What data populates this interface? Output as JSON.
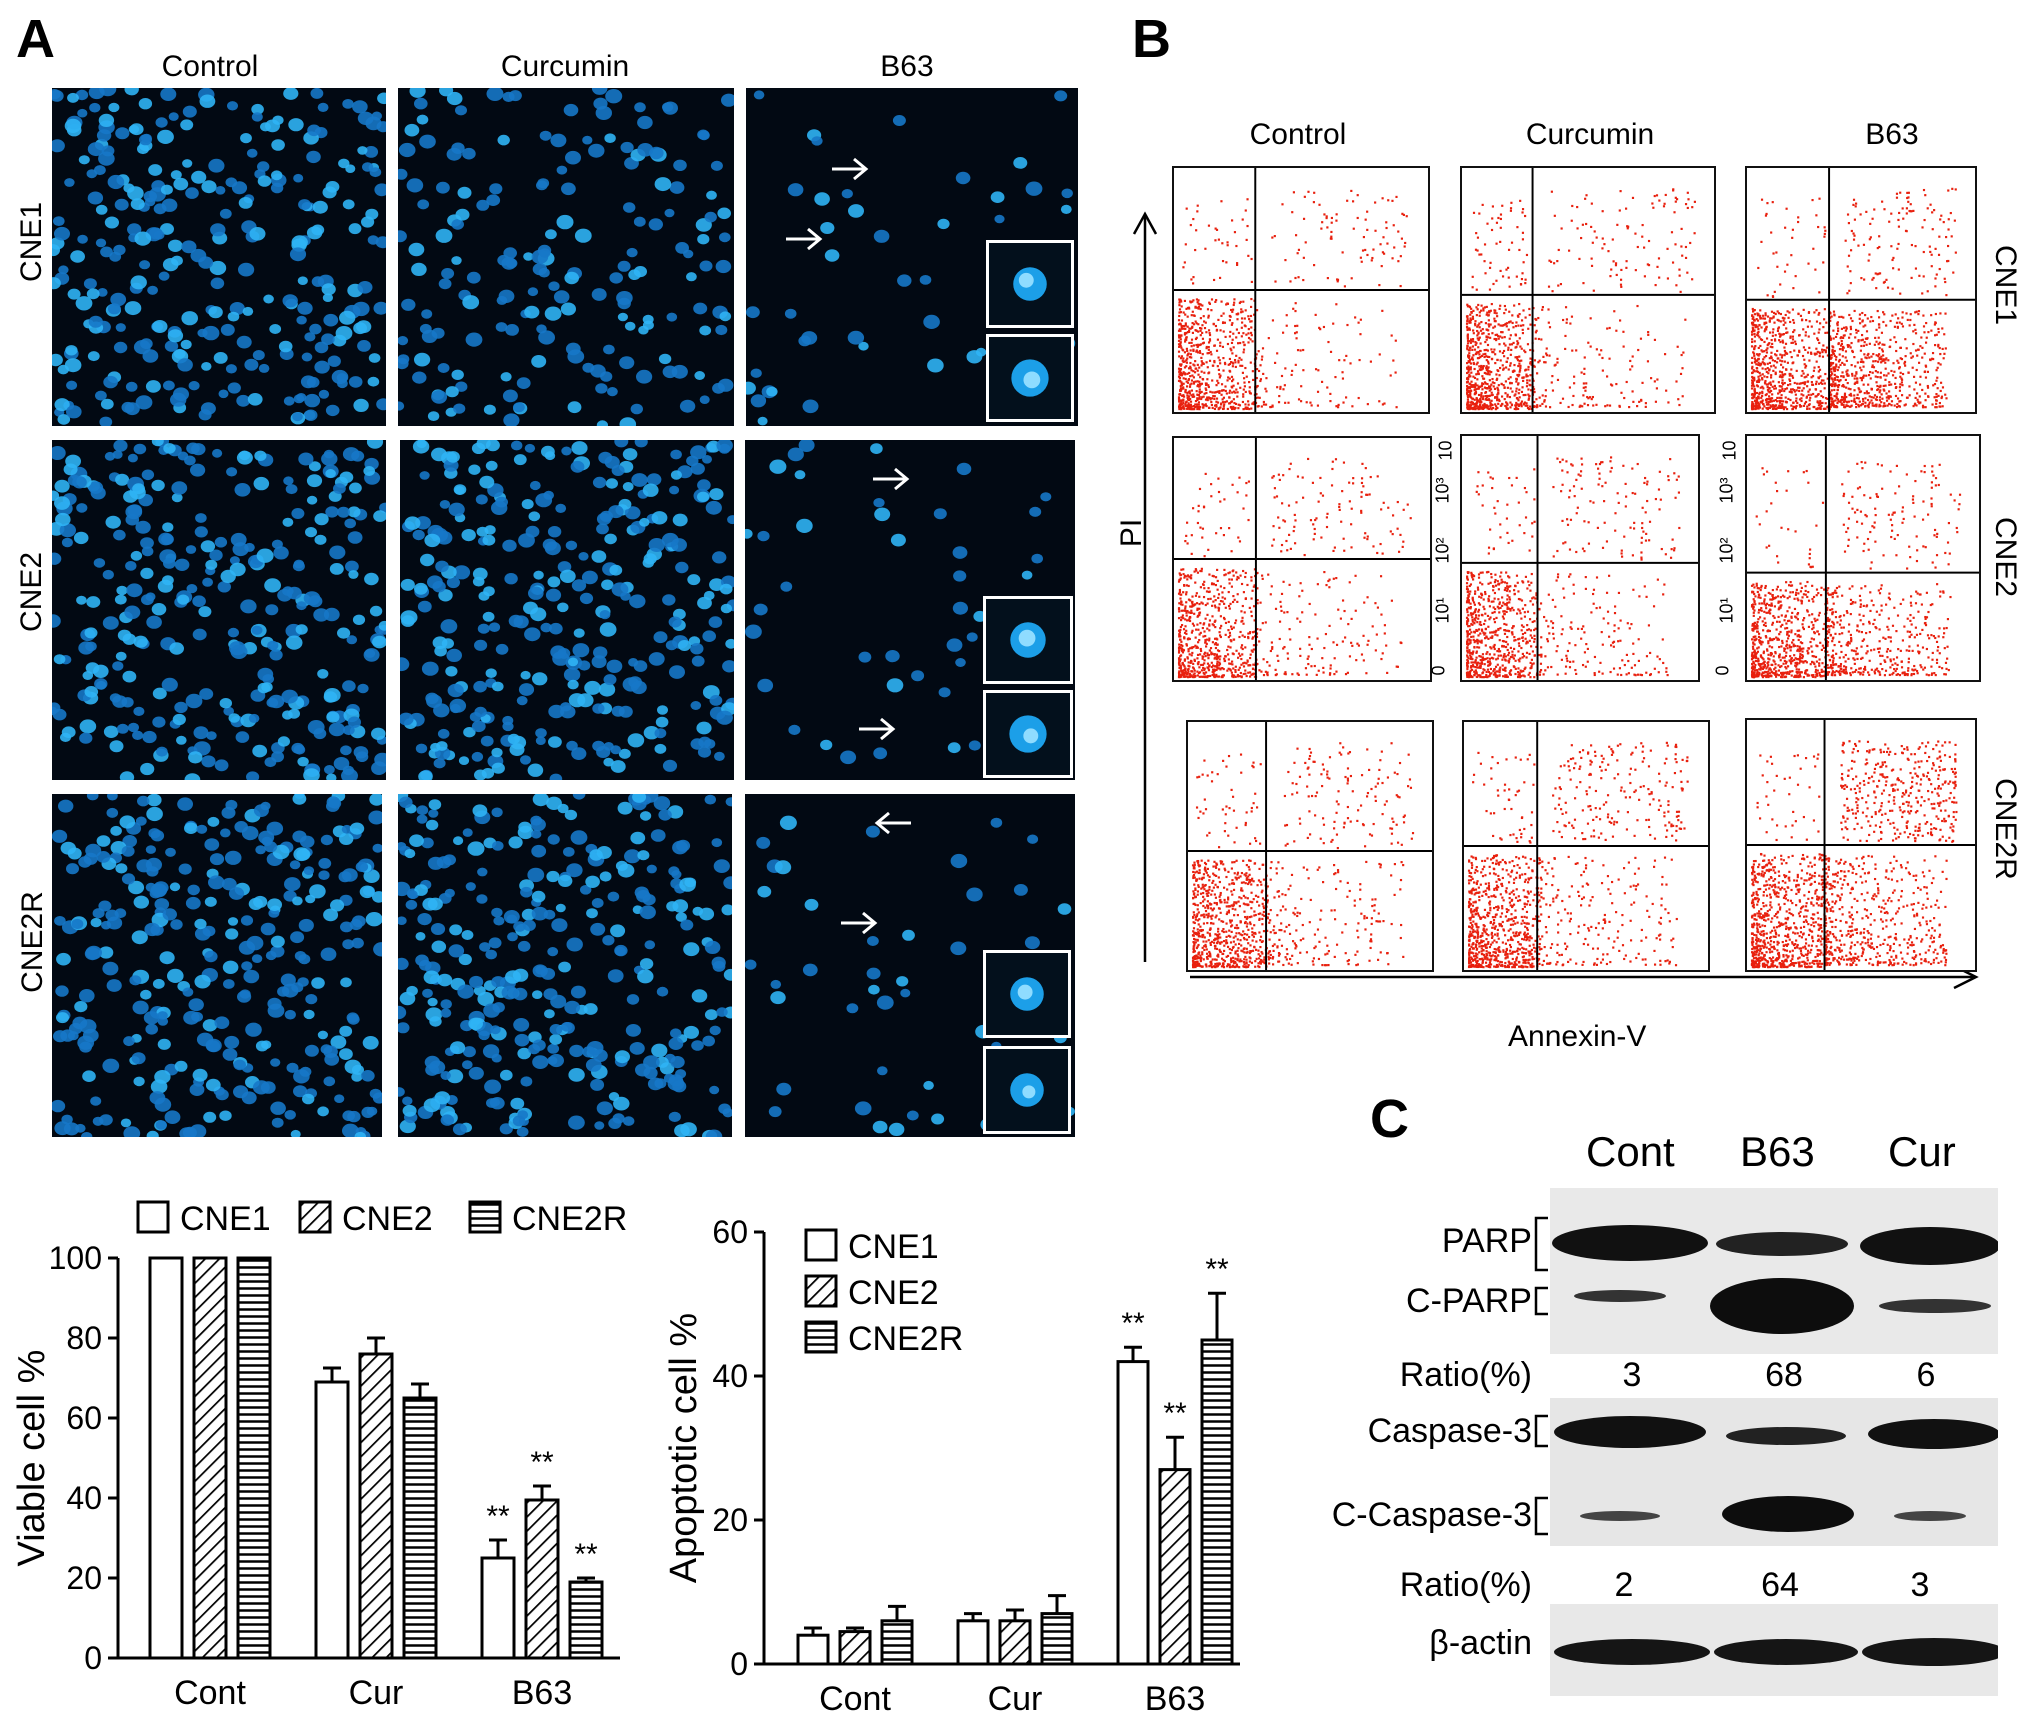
{
  "panels": {
    "a": "A",
    "b": "B",
    "c": "C"
  },
  "panel_a": {
    "columns": [
      "Control",
      "Curcumin",
      "B63"
    ],
    "rows": [
      "CNE1",
      "CNE2",
      "CNE2R"
    ]
  },
  "panel_b": {
    "columns": [
      "Control",
      "Curcumin",
      "B63"
    ],
    "rows": [
      "CNE1",
      "CNE2",
      "CNE2R"
    ],
    "y_axis": "PI",
    "x_axis": "Annexin-V",
    "tick_labels": [
      "0",
      "10¹",
      "10²",
      "10³",
      "10"
    ],
    "colors": {
      "dots": "#e8200e",
      "gates": "#000000"
    }
  },
  "panel_c": {
    "lanes": [
      "Cont",
      "B63",
      "Cur"
    ],
    "bands": {
      "parp": "PARP",
      "c_parp": "C-PARP",
      "caspase3": "Caspase-3",
      "c_caspase3": "C-Caspase-3",
      "actin": "β-actin"
    },
    "ratio_label": "Ratio(%)",
    "ratio_parp": [
      "3",
      "68",
      "6"
    ],
    "ratio_caspase": [
      "2",
      "64",
      "3"
    ]
  },
  "chart_data": [
    {
      "type": "bar",
      "ylabel": "Viable cell %",
      "xlabel": "",
      "categories": [
        "Cont",
        "Cur",
        "B63"
      ],
      "ylim": [
        0,
        100
      ],
      "yticks": [
        0,
        20,
        40,
        60,
        80,
        100
      ],
      "legend_position": "top",
      "series": [
        {
          "name": "CNE1",
          "pattern": "open",
          "values": [
            100,
            69,
            25
          ],
          "errors": [
            0,
            3.5,
            4.5
          ]
        },
        {
          "name": "CNE2",
          "pattern": "diagonal",
          "values": [
            100,
            76,
            39.5
          ],
          "errors": [
            0,
            4,
            3.5
          ]
        },
        {
          "name": "CNE2R",
          "pattern": "horizontal",
          "values": [
            100,
            65,
            19
          ],
          "errors": [
            0,
            3.5,
            1
          ]
        }
      ],
      "annotations": [
        {
          "category": "B63",
          "series": "CNE1",
          "text": "**"
        },
        {
          "category": "B63",
          "series": "CNE2",
          "text": "**"
        },
        {
          "category": "B63",
          "series": "CNE2R",
          "text": "**"
        }
      ]
    },
    {
      "type": "bar",
      "ylabel": "Apoptotic cell %",
      "xlabel": "",
      "categories": [
        "Cont",
        "Cur",
        "B63"
      ],
      "ylim": [
        0,
        60
      ],
      "yticks": [
        0,
        20,
        40,
        60
      ],
      "legend_position": "top-left",
      "series": [
        {
          "name": "CNE1",
          "pattern": "open",
          "values": [
            4,
            6,
            42
          ],
          "errors": [
            1,
            1,
            2
          ]
        },
        {
          "name": "CNE2",
          "pattern": "diagonal",
          "values": [
            4.5,
            6,
            27
          ],
          "errors": [
            0.5,
            1.5,
            4.5
          ]
        },
        {
          "name": "CNE2R",
          "pattern": "horizontal",
          "values": [
            6,
            7,
            45
          ],
          "errors": [
            2,
            2.5,
            6.5
          ]
        }
      ],
      "annotations": [
        {
          "category": "B63",
          "series": "CNE1",
          "text": "**"
        },
        {
          "category": "B63",
          "series": "CNE2",
          "text": "**"
        },
        {
          "category": "B63",
          "series": "CNE2R",
          "text": "**"
        }
      ]
    }
  ]
}
